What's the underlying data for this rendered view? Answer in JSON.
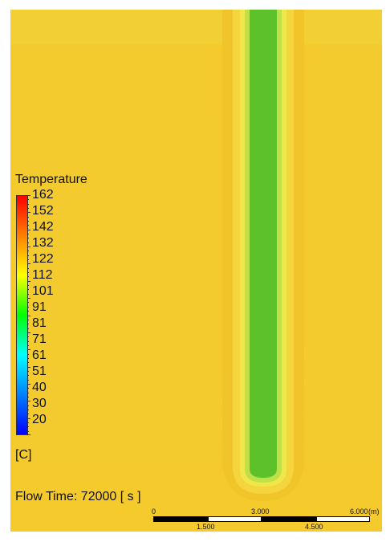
{
  "viewport": {
    "background_color": "#f4ca2c",
    "core_color": "#57c02a",
    "halo_color": "#e6d53f"
  },
  "legend": {
    "title": "Temperature",
    "labels": [
      "162",
      "152",
      "142",
      "132",
      "122",
      "112",
      "101",
      "91",
      "81",
      "71",
      "61",
      "51",
      "40",
      "30",
      "20"
    ],
    "unit": "[C]",
    "colors": [
      "#ff0000",
      "#ff8000",
      "#ffff00",
      "#00ff00",
      "#00ffff",
      "#0080ff",
      "#0000ff"
    ]
  },
  "flow_time": {
    "label": "Flow Time:",
    "value": "72000 [ s ]"
  },
  "scale": {
    "top_labels": [
      "0",
      "3.000",
      "6.000"
    ],
    "bottom_labels": [
      "1.500",
      "4.500"
    ],
    "unit": "(m)"
  }
}
